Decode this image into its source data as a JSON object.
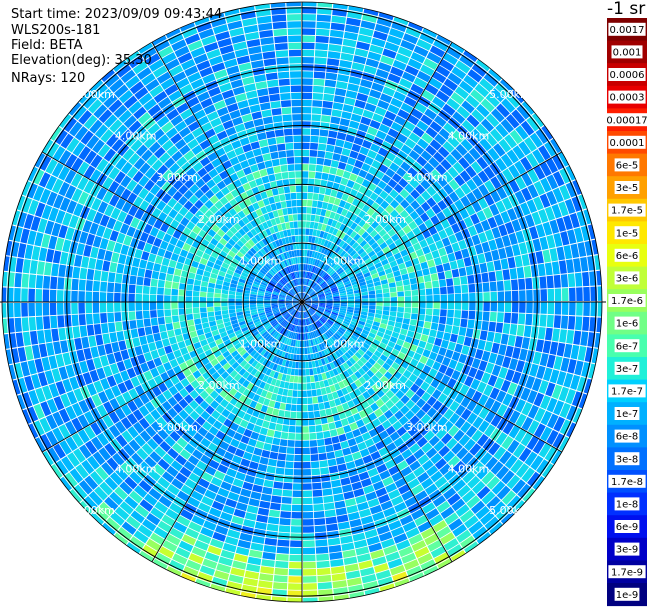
{
  "header": {
    "start_time": "Start time: 2023/09/09 09:43:44",
    "device": "WLS200s-181",
    "field": "Field: BETA",
    "elevation": "Elevation(deg): 35.30",
    "nrays": "NRays: 120"
  },
  "colorbar": {
    "unit": "-1 sr",
    "ticks": [
      "0.0017",
      "0.001",
      "0.0006",
      "0.0003",
      "0.00017",
      "0.0001",
      "6e-5",
      "3e-5",
      "1.7e-5",
      "1e-5",
      "6e-6",
      "3e-6",
      "1.7e-6",
      "1e-6",
      "6e-7",
      "3e-7",
      "1.7e-7",
      "1e-7",
      "6e-8",
      "3e-8",
      "1.7e-8",
      "1e-8",
      "6e-9",
      "3e-9",
      "1.7e-9",
      "1e-9"
    ],
    "colors": [
      "#7f0000",
      "#a00000",
      "#c80000",
      "#e80000",
      "#ff1e00",
      "#ff4a00",
      "#ff7800",
      "#ffa000",
      "#ffc800",
      "#ffe800",
      "#e8ff10",
      "#c0ff38",
      "#98ff5e",
      "#70ff86",
      "#48ffae",
      "#20f0d8",
      "#00d0ff",
      "#00b0ff",
      "#0090ff",
      "#0070ff",
      "#0050ff",
      "#0030ff",
      "#0010ee",
      "#0000c8",
      "#0000a0",
      "#000080"
    ]
  },
  "chart_data": {
    "type": "heatmap",
    "projection": "polar",
    "field": "BETA",
    "nrays": 120,
    "range_rings": [
      {
        "label": "1.00km",
        "range_km": 1
      },
      {
        "label": "2.00km",
        "range_km": 2
      },
      {
        "label": "3.00km",
        "range_km": 3
      },
      {
        "label": "4.00km",
        "range_km": 4
      },
      {
        "label": "5.00km",
        "range_km": 5
      }
    ],
    "max_range_km": 5.1,
    "colorscale": "jet",
    "value_range": [
      1e-09,
      0.0017
    ]
  }
}
